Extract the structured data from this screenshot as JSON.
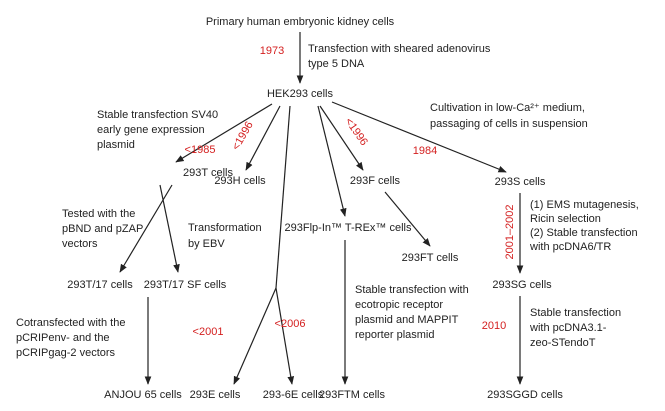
{
  "nodes": [
    "Primary human embryonic kidney cells",
    "HEK293 cells",
    "293T cells",
    "293H cells",
    "293F cells",
    "293S cells",
    "293Flp-In™ T-REx™ cells",
    "293FT cells",
    "293T/17 cells",
    "293T/17 SF cells",
    "293SG cells",
    "ANJOU 65 cells",
    "293E cells",
    "293-6E cells",
    "293FTM cells",
    "293SGGD cells"
  ],
  "notes": [
    [
      "Transfection with sheared adenovirus",
      "type 5 DNA"
    ],
    [
      "Stable transfection SV40",
      "early gene expression",
      "plasmid"
    ],
    [
      "Cultivation in low-Ca²⁺ medium,",
      "passaging of cells in suspension"
    ],
    [
      "Tested with the",
      "pBND and pZAP",
      "vectors"
    ],
    [
      "Transformation",
      "by EBV"
    ],
    [
      "(1) EMS mutagenesis,",
      "Ricin selection",
      "(2) Stable transfection",
      "with pcDNA6/TR"
    ],
    [
      "Stable transfection with",
      "ecotropic receptor",
      "plasmid and MAPPIT",
      "reporter plasmid"
    ],
    [
      "Cotransfected with the",
      "pCRIPenv- and the",
      "pCRIPgag-2 vectors"
    ],
    [
      "Stable transfection",
      "with pcDNA3.1-",
      "zeo-STendoT"
    ]
  ],
  "years": [
    "1973",
    "<1985",
    "<1996",
    "<1996",
    "1984",
    "2001–2002",
    "<2001",
    "<2006",
    "2010"
  ]
}
